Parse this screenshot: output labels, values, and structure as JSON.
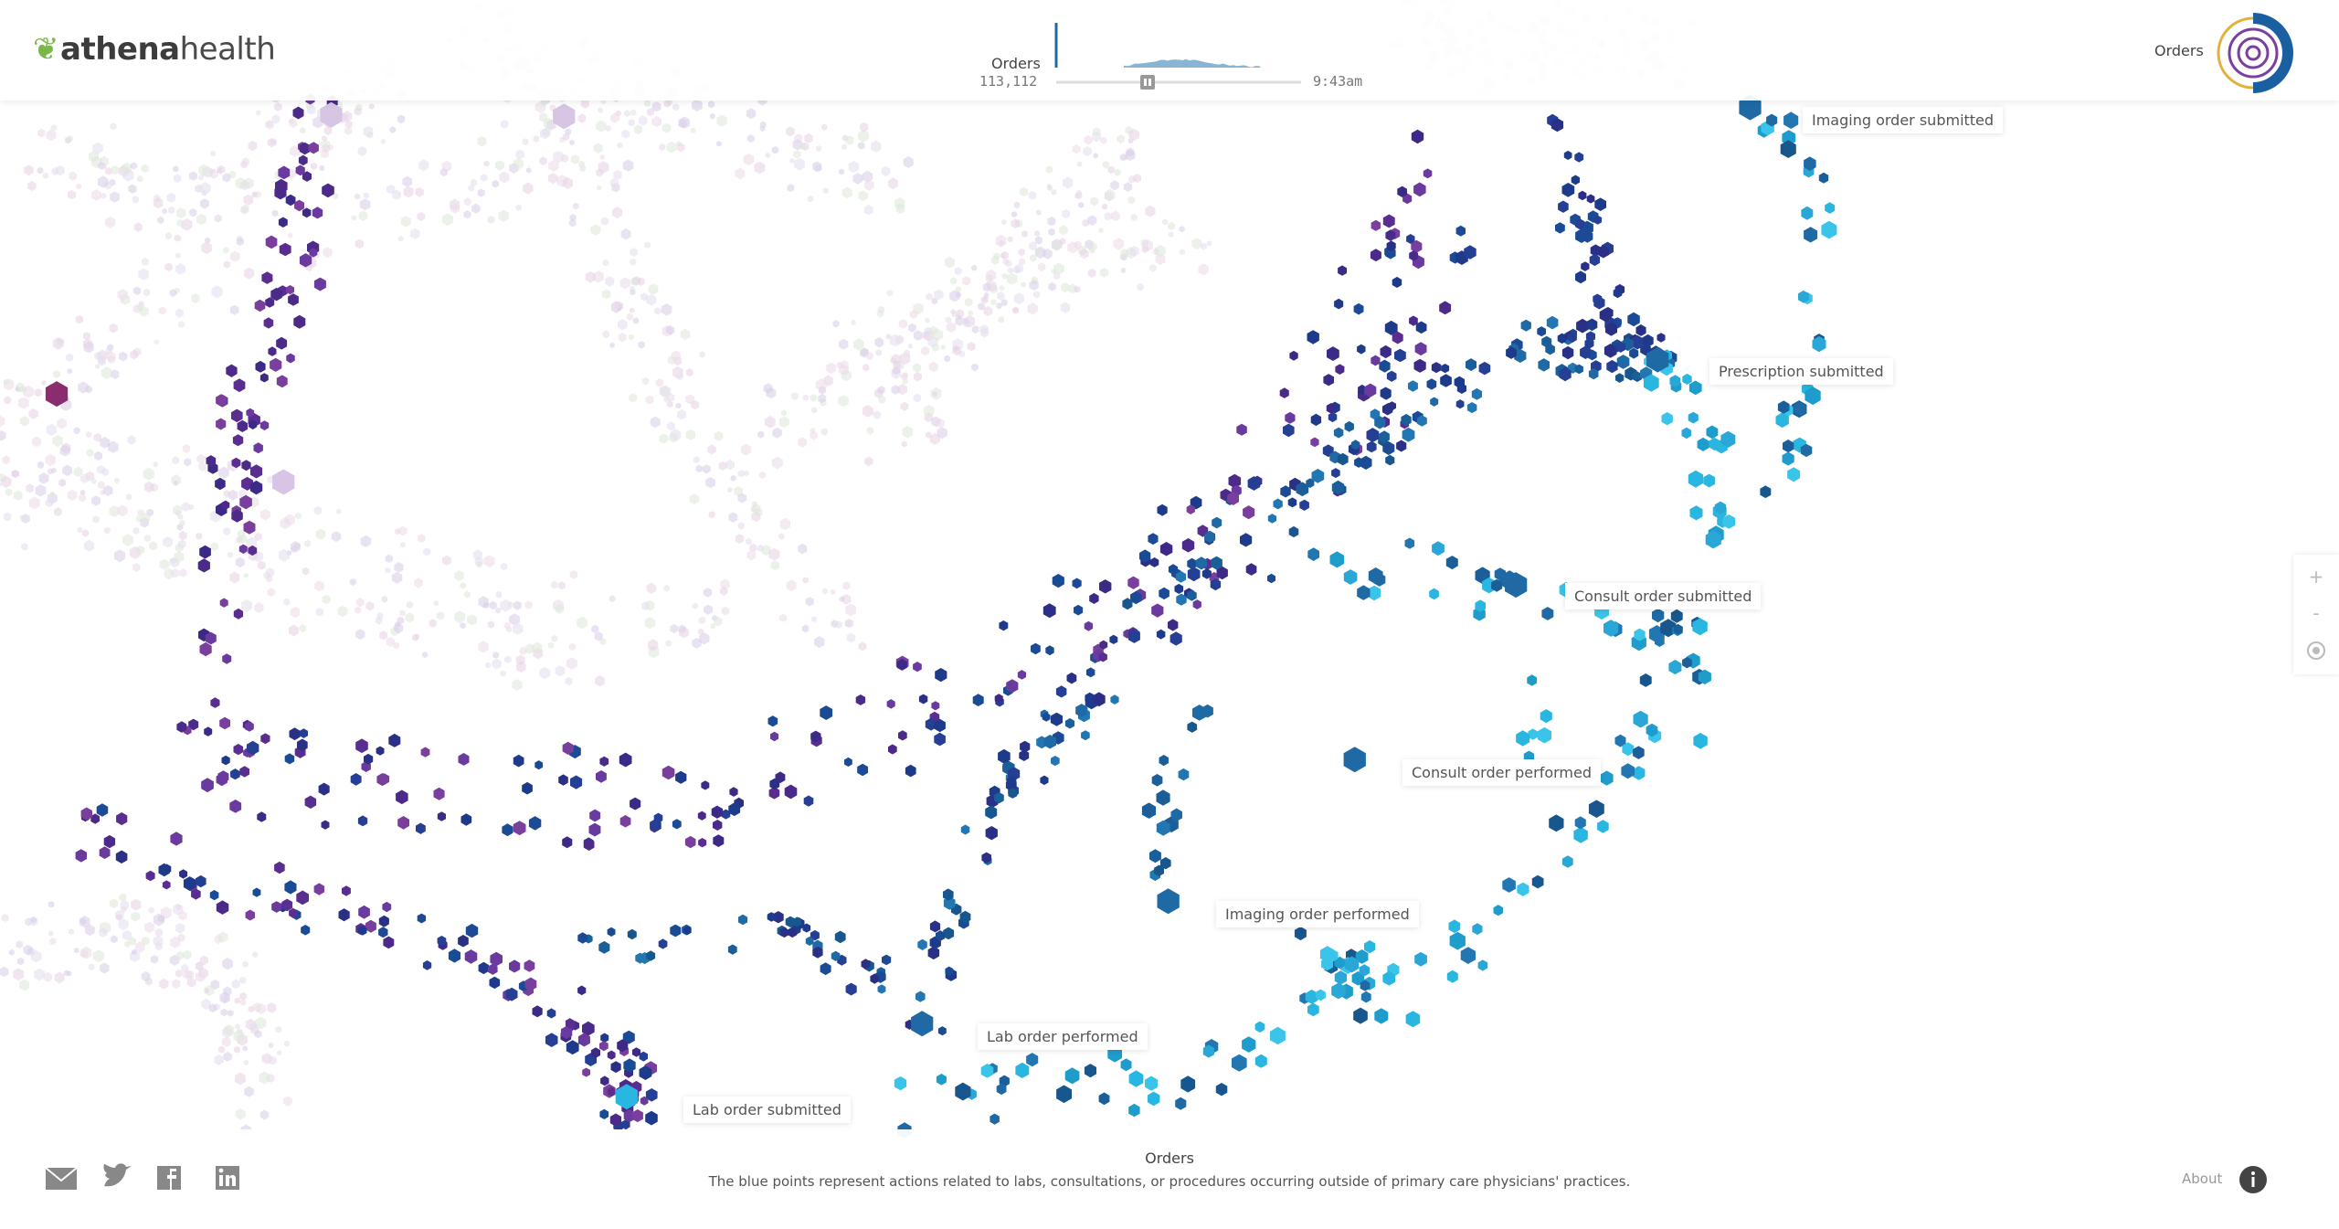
{
  "header": {
    "logo": {
      "brand": "athena",
      "suffix": "health"
    },
    "timeline": {
      "label": "Orders",
      "count": "113,112",
      "time": "9:43am"
    },
    "view": "Orders"
  },
  "labels": [
    "Imaging order submitted",
    "Prescription submitted",
    "Consult order submitted",
    "Consult order performed",
    "Imaging order performed",
    "Lab order performed",
    "Lab order submitted"
  ],
  "controls": {
    "zoom_in": "+",
    "zoom_out": "-"
  },
  "footer": {
    "title": "Orders",
    "description": "The blue points represent actions related to labs, consultations, or procedures occurring outside of primary care physicians' practices.",
    "about": "About"
  }
}
